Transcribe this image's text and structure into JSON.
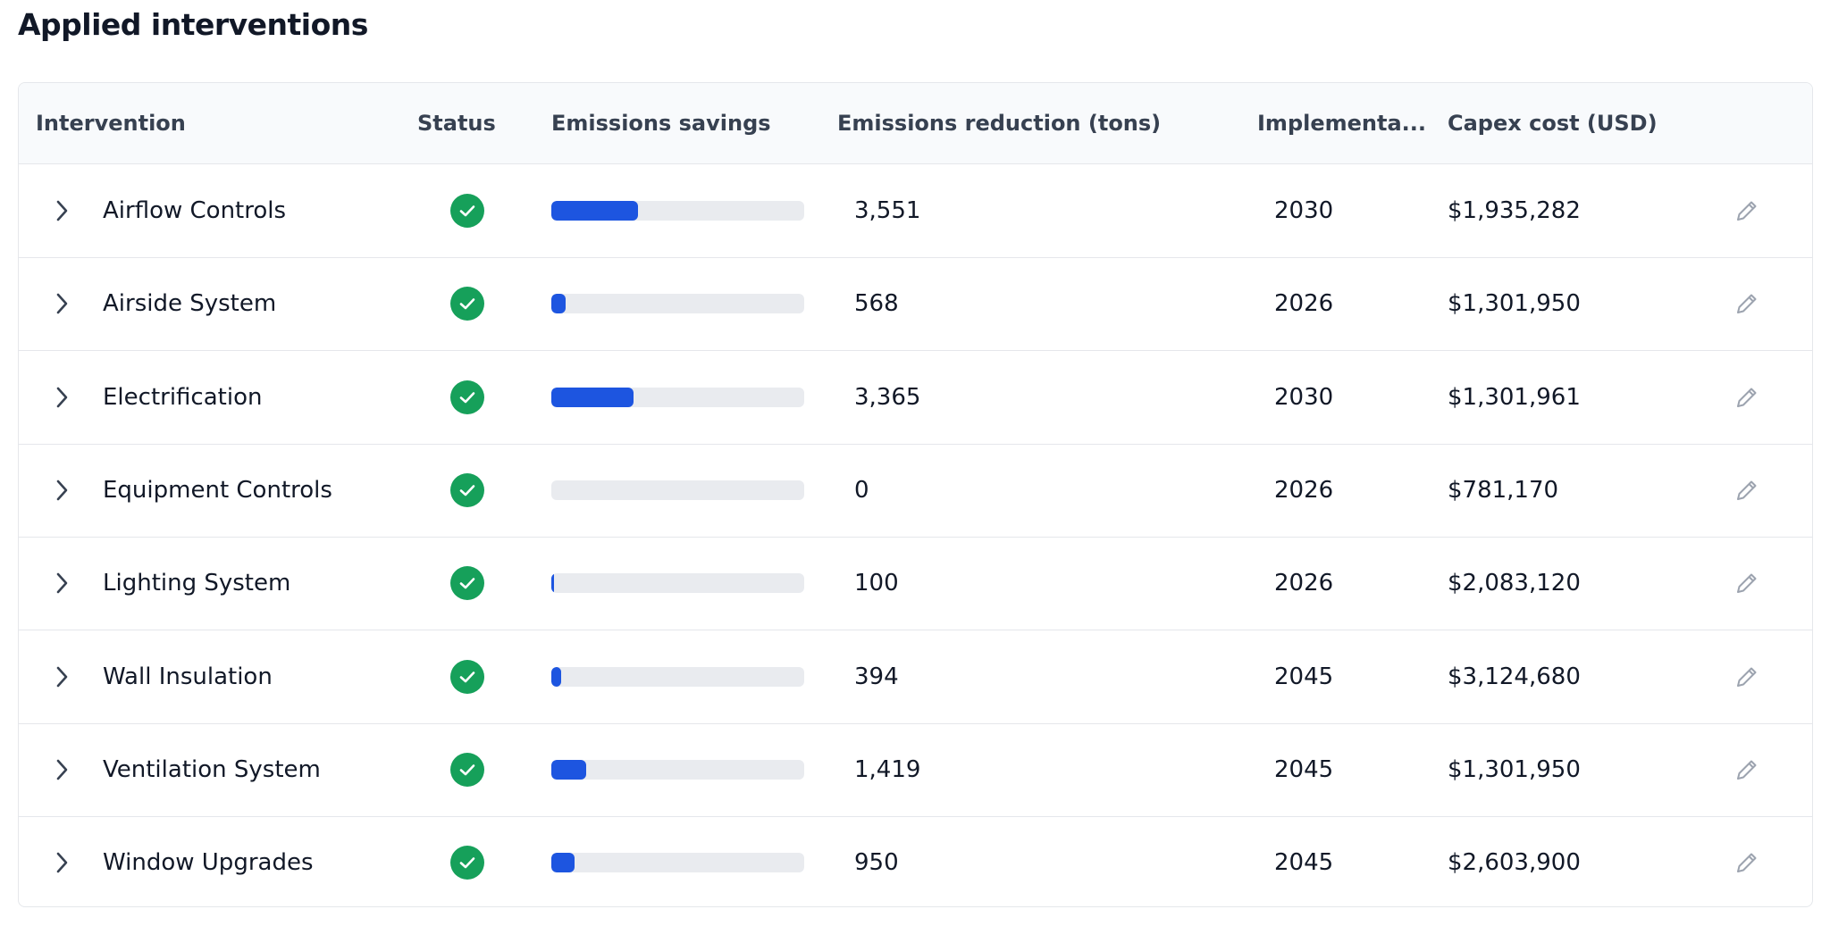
{
  "header": {
    "title": "Applied interventions"
  },
  "table": {
    "columns": [
      "Intervention",
      "Status",
      "Emissions savings",
      "Emissions reduction (tons)",
      "Implementa...",
      "Capex cost (USD)"
    ],
    "rows": [
      {
        "name": "Airflow Controls",
        "reduction": 3551,
        "reduction_label": "3,551",
        "year": "2030",
        "capex": "$1,935,282"
      },
      {
        "name": "Airside System",
        "reduction": 568,
        "reduction_label": "568",
        "year": "2026",
        "capex": "$1,301,950"
      },
      {
        "name": "Electrification",
        "reduction": 3365,
        "reduction_label": "3,365",
        "year": "2030",
        "capex": "$1,301,961"
      },
      {
        "name": "Equipment Controls",
        "reduction": 0,
        "reduction_label": "0",
        "year": "2026",
        "capex": "$781,170"
      },
      {
        "name": "Lighting System",
        "reduction": 100,
        "reduction_label": "100",
        "year": "2026",
        "capex": "$2,083,120"
      },
      {
        "name": "Wall Insulation",
        "reduction": 394,
        "reduction_label": "394",
        "year": "2045",
        "capex": "$3,124,680"
      },
      {
        "name": "Ventilation System",
        "reduction": 1419,
        "reduction_label": "1,419",
        "year": "2045",
        "capex": "$1,301,950"
      },
      {
        "name": "Window Upgrades",
        "reduction": 950,
        "reduction_label": "950",
        "year": "2045",
        "capex": "$2,603,900"
      }
    ]
  }
}
